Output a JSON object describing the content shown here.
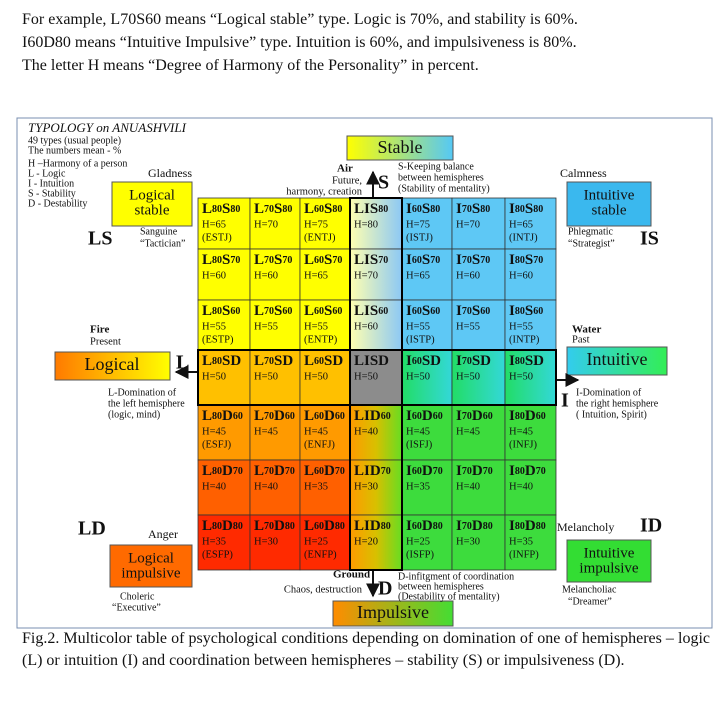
{
  "intro": [
    "For example, L70S60 means “Logical stable” type. Logic is 70%, and stability is 60%.",
    "I60D80 means “Intuitive Impulsive” type. Intuition is 60%, and impulsiveness is 80%.",
    "The letter H means “Degree of Harmony of the Personality” in percent."
  ],
  "figure": {
    "title": "TYPOLOGY on ANUASHVILI",
    "notes": [
      "49 types (usual people)",
      "The numbers mean - %"
    ],
    "legend": [
      "H –Harmony of a person",
      "L - Logic",
      "I - Intuition",
      "S - Stability",
      "D - Destability"
    ],
    "corners": {
      "ls": {
        "mood": "Gladness",
        "box": [
          "Logical",
          "stable"
        ],
        "code": "LS",
        "temperament": "Sanguine",
        "role": "“Tactician”"
      },
      "is": {
        "mood": "Calmness",
        "box": [
          "Intuitive",
          "stable"
        ],
        "code": "IS",
        "temperament": "Phlegmatic",
        "role": "“Strategist”"
      },
      "ld": {
        "mood": "Anger",
        "box": [
          "Logical",
          "impulsive"
        ],
        "code": "LD",
        "temperament": "Choleric",
        "role": "“Executive”"
      },
      "id": {
        "mood": "Melancholy",
        "box": [
          "Intuitive",
          "impulsive"
        ],
        "code": "ID",
        "temperament": "Melancholiac",
        "role": "“Dreamer”"
      }
    },
    "axes": {
      "top": {
        "box": "Stable",
        "element": "Air",
        "meaning": [
          "Future,",
          "harmony, creation"
        ],
        "letter": "S",
        "note": [
          "S-Keeping balance",
          "between hemispheres",
          "(Stability of mentality)"
        ]
      },
      "left": {
        "box": "Logical",
        "element": "Fire",
        "time": "Present",
        "letter": "L",
        "note": [
          "L-Domination of",
          "the left hemisphere",
          "(logic, mind)"
        ]
      },
      "right": {
        "box": "Intuitive",
        "element": "Water",
        "time": "Past",
        "letter": "I",
        "note": [
          "I-Domination of",
          "the right hemisphere",
          "( Intuition, Spirit)"
        ]
      },
      "bottom": {
        "box": "Impulsive",
        "element": "Ground",
        "meaning": [
          "Chaos, destruction"
        ],
        "letter": "D",
        "note": [
          "D-infitgment of coordination",
          "between hemispheres",
          "(Destability of mentality)"
        ]
      }
    },
    "grid": [
      [
        {
          "code": [
            "L",
            "80",
            "S",
            "80"
          ],
          "h": "H=65",
          "mbti": "(ESTJ)"
        },
        {
          "code": [
            "L",
            "70",
            "S",
            "80"
          ],
          "h": "H=70"
        },
        {
          "code": [
            "L",
            "60",
            "S",
            "80"
          ],
          "h": "H=75",
          "mbti": "(ENTJ)"
        },
        {
          "code": [
            "LIS",
            "80"
          ],
          "h": "H=80"
        },
        {
          "code": [
            "I",
            "60",
            "S",
            "80"
          ],
          "h": "H=75",
          "mbti": "(ISTJ)"
        },
        {
          "code": [
            "I",
            "70",
            "S",
            "80"
          ],
          "h": "H=70"
        },
        {
          "code": [
            "I",
            "80",
            "S",
            "80"
          ],
          "h": "H=65",
          "mbti": "(INTJ)"
        }
      ],
      [
        {
          "code": [
            "L",
            "80",
            "S",
            "70"
          ],
          "h": "H=60"
        },
        {
          "code": [
            "L",
            "70",
            "S",
            "70"
          ],
          "h": "H=60"
        },
        {
          "code": [
            "L",
            "60",
            "S",
            "70"
          ],
          "h": "H=65"
        },
        {
          "code": [
            "LIS",
            "70"
          ],
          "h": "H=70"
        },
        {
          "code": [
            "I",
            "60",
            "S",
            "70"
          ],
          "h": "H=65"
        },
        {
          "code": [
            "I",
            "70",
            "S",
            "70"
          ],
          "h": "H=60"
        },
        {
          "code": [
            "I",
            "80",
            "S",
            "70"
          ],
          "h": "H=60"
        }
      ],
      [
        {
          "code": [
            "L",
            "80",
            "S",
            "60"
          ],
          "h": "H=55",
          "mbti": "(ESTP)"
        },
        {
          "code": [
            "L",
            "70",
            "S",
            "60"
          ],
          "h": "H=55"
        },
        {
          "code": [
            "L",
            "60",
            "S",
            "60"
          ],
          "h": "H=55",
          "mbti": "(ENTP)"
        },
        {
          "code": [
            "LIS",
            "60"
          ],
          "h": "H=60"
        },
        {
          "code": [
            "I",
            "60",
            "S",
            "60"
          ],
          "h": "H=55",
          "mbti": "(ISTP)"
        },
        {
          "code": [
            "I",
            "70",
            "S",
            "60"
          ],
          "h": "H=55"
        },
        {
          "code": [
            "I",
            "80",
            "S",
            "60"
          ],
          "h": "H=55",
          "mbti": "(INTP)"
        }
      ],
      [
        {
          "code": [
            "L",
            "80",
            "SD"
          ],
          "h": "H=50"
        },
        {
          "code": [
            "L",
            "70",
            "SD"
          ],
          "h": "H=50"
        },
        {
          "code": [
            "L",
            "60",
            "SD"
          ],
          "h": "H=50"
        },
        {
          "code": [
            "LISD"
          ],
          "h": "H=50"
        },
        {
          "code": [
            "I",
            "60",
            "SD"
          ],
          "h": "H=50"
        },
        {
          "code": [
            "I",
            "70",
            "SD"
          ],
          "h": "H=50"
        },
        {
          "code": [
            "I",
            "80",
            "SD"
          ],
          "h": "H=50"
        }
      ],
      [
        {
          "code": [
            "L",
            "80",
            "D",
            "60"
          ],
          "h": "H=45",
          "mbti": "(ESFJ)"
        },
        {
          "code": [
            "L",
            "70",
            "D",
            "60"
          ],
          "h": "H=45"
        },
        {
          "code": [
            "L",
            "60",
            "D",
            "60"
          ],
          "h": "H=45",
          "mbti": "(ENFJ)"
        },
        {
          "code": [
            "LID",
            "60"
          ],
          "h": "H=40"
        },
        {
          "code": [
            "I",
            "60",
            "D",
            "60"
          ],
          "h": "H=45",
          "mbti": "(ISFJ)"
        },
        {
          "code": [
            "I",
            "70",
            "D",
            "60"
          ],
          "h": "H=45"
        },
        {
          "code": [
            "I",
            "80",
            "D",
            "60"
          ],
          "h": "H=45",
          "mbti": "(INFJ)"
        }
      ],
      [
        {
          "code": [
            "L",
            "80",
            "D",
            "70"
          ],
          "h": "H=40"
        },
        {
          "code": [
            "L",
            "70",
            "D",
            "70"
          ],
          "h": "H=40"
        },
        {
          "code": [
            "L",
            "60",
            "D",
            "70"
          ],
          "h": "H=35"
        },
        {
          "code": [
            "LID",
            "70"
          ],
          "h": "H=30"
        },
        {
          "code": [
            "I",
            "60",
            "D",
            "70"
          ],
          "h": "H=35"
        },
        {
          "code": [
            "I",
            "70",
            "D",
            "70"
          ],
          "h": "H=40"
        },
        {
          "code": [
            "I",
            "80",
            "D",
            "70"
          ],
          "h": "H=40"
        }
      ],
      [
        {
          "code": [
            "L",
            "80",
            "D",
            "80"
          ],
          "h": "H=35",
          "mbti": "(ESFP)"
        },
        {
          "code": [
            "L",
            "70",
            "D",
            "80"
          ],
          "h": "H=30"
        },
        {
          "code": [
            "L",
            "60",
            "D",
            "80"
          ],
          "h": "H=25",
          "mbti": "(ENFP)"
        },
        {
          "code": [
            "LID",
            "80"
          ],
          "h": "H=20"
        },
        {
          "code": [
            "I",
            "60",
            "D",
            "80"
          ],
          "h": "H=25",
          "mbti": "(ISFP)"
        },
        {
          "code": [
            "I",
            "70",
            "D",
            "80"
          ],
          "h": "H=30"
        },
        {
          "code": [
            "I",
            "80",
            "D",
            "80"
          ],
          "h": "H=35",
          "mbti": "(INFP)"
        }
      ]
    ]
  },
  "caption": "Fig.2. Multicolor table of psychological conditions depending on domination of one of hemispheres – logic (L)  or intuition (I) and coordination between hemispheres – stability (S) or impulsiveness (D)."
}
